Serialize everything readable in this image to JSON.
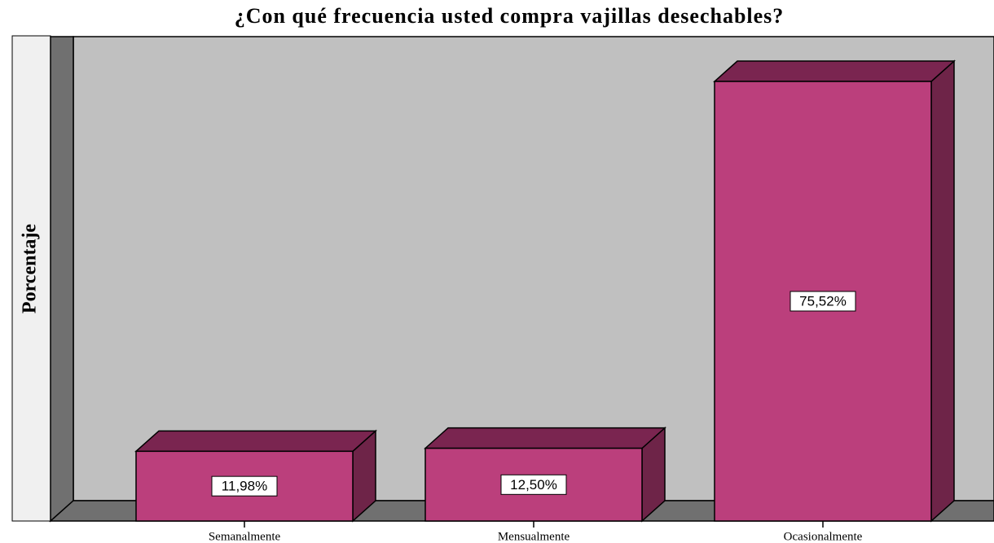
{
  "chart_data": {
    "type": "bar3d",
    "title": "¿Con qué frecuencia usted compra vajillas desechables?",
    "y_label": "Porcentaje",
    "categories": [
      "Semanalmente",
      "Mensualmente",
      "Ocasionalmente"
    ],
    "values": [
      11.98,
      12.5,
      75.52
    ],
    "value_labels": [
      "11,98%",
      "12,50%",
      "75,52%"
    ],
    "color": "#bb3f7c",
    "ylim": [
      0,
      80
    ]
  }
}
